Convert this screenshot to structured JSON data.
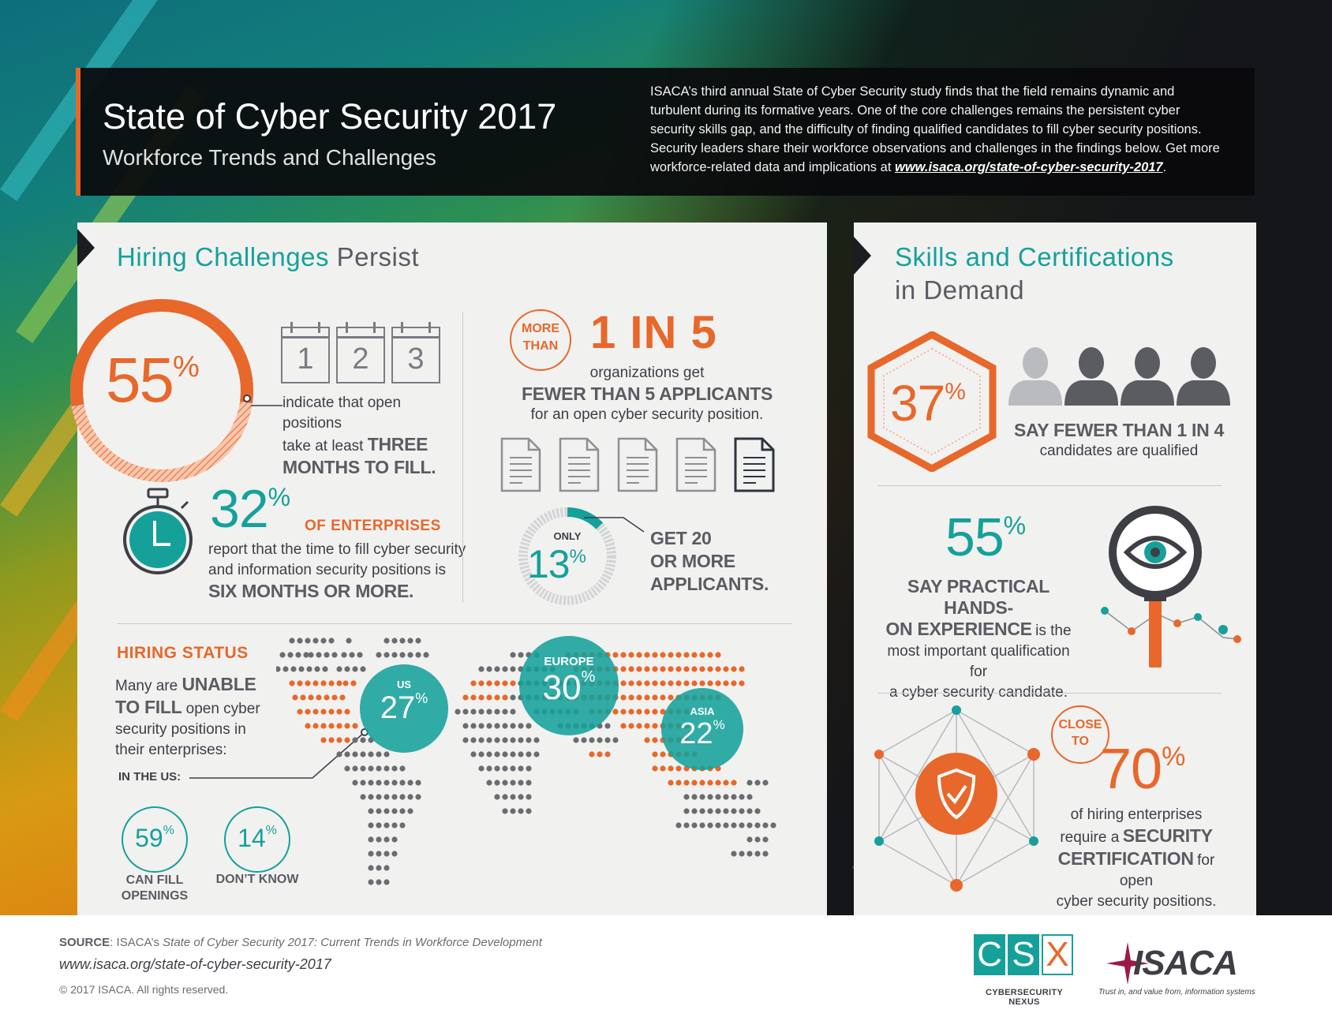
{
  "header": {
    "title": "State of Cyber Security 2017",
    "subtitle": "Workforce Trends and Challenges",
    "intro": "ISACA’s third annual State of Cyber Security study finds that the field remains dynamic and turbulent during its formative years. One of the core challenges remains the persistent cyber security skills gap, and the difficulty of finding qualified candidates to fill cyber security positions. Security leaders share their workforce observations and challenges in the findings below. Get more workforce-related data and implications at",
    "intro_link": "www.isaca.org/state-of-cyber-security-2017",
    "intro_end": "."
  },
  "hiring": {
    "heading_a": "Hiring Challenges",
    "heading_b": "Persist",
    "stat55": {
      "value": "55",
      "unit": "%",
      "fraction": 0.55,
      "text_a": "indicate that open positions",
      "text_b": "take at least",
      "text_c": "THREE",
      "text_d": "MONTHS TO FILL."
    },
    "calendar": [
      "1",
      "2",
      "3"
    ],
    "stat32": {
      "value": "32",
      "unit": "%",
      "label": "OF ENTERPRISES",
      "text_a": "report that the time to fill cyber security",
      "text_b": "and information security positions is",
      "text_c": "SIX MONTHS OR MORE."
    },
    "one_in_five": {
      "badge_a": "MORE",
      "badge_b": "THAN",
      "value": "1 IN 5",
      "text_a": "organizations get",
      "text_b": "FEWER THAN 5 APPLICANTS",
      "text_c": "for an open cyber security position."
    },
    "stat13": {
      "label": "ONLY",
      "value": "13",
      "unit": "%",
      "fraction": 0.13,
      "text_a": "GET 20",
      "text_b": "OR MORE",
      "text_c": "APPLICANTS."
    }
  },
  "status": {
    "heading": "HIRING STATUS",
    "text_a": "Many are",
    "text_b": "UNABLE",
    "text_c": "TO FILL",
    "text_d": "open cyber",
    "text_e": "security positions in",
    "text_f": "their enterprises:",
    "in_us": "IN THE US:",
    "can_fill": {
      "value": "59",
      "unit": "%",
      "label_a": "CAN FILL",
      "label_b": "OPENINGS"
    },
    "dont_know": {
      "value": "14",
      "unit": "%",
      "label": "DON’T KNOW"
    },
    "regions": [
      {
        "name": "US",
        "value": "27",
        "unit": "%"
      },
      {
        "name": "EUROPE",
        "value": "30",
        "unit": "%"
      },
      {
        "name": "ASIA",
        "value": "22",
        "unit": "%"
      }
    ]
  },
  "skills": {
    "heading_a": "Skills and Certifications",
    "heading_b": "in Demand",
    "stat37": {
      "value": "37",
      "unit": "%",
      "text_a": "SAY FEWER THAN 1 IN 4",
      "text_b": "candidates are qualified"
    },
    "stat55": {
      "value": "55",
      "unit": "%",
      "text_a": "SAY PRACTICAL HANDS-",
      "text_b": "ON EXPERIENCE",
      "text_c": "is the",
      "text_d": "most important qualification for",
      "text_e": "a cyber security candidate."
    },
    "stat70": {
      "badge_a": "CLOSE",
      "badge_b": "TO",
      "value": "70",
      "unit": "%",
      "text_a": "of hiring enterprises",
      "text_b": "require a",
      "text_c": "SECURITY",
      "text_d": "CERTIFICATION",
      "text_e": "for open",
      "text_f": "cyber security positions."
    }
  },
  "footer": {
    "source_label": "SOURCE",
    "source_a": ": ISACA’s",
    "source_italic": "State of Cyber Security 2017: Current Trends in Workforce Development",
    "url": "www.isaca.org/state-of-cyber-security-2017",
    "copyright": "© 2017 ISACA. All rights reserved.",
    "csx_letters": [
      "C",
      "S",
      "X"
    ],
    "csx_tag": "CYBERSECURITY NEXUS",
    "isaca_name": "ISACA",
    "isaca_tag": "Trust in, and value from, information systems"
  },
  "colors": {
    "orange": "#e8672a",
    "teal": "#15a19a",
    "dark": "#3d3f45",
    "panel": "#f1f1f0"
  }
}
